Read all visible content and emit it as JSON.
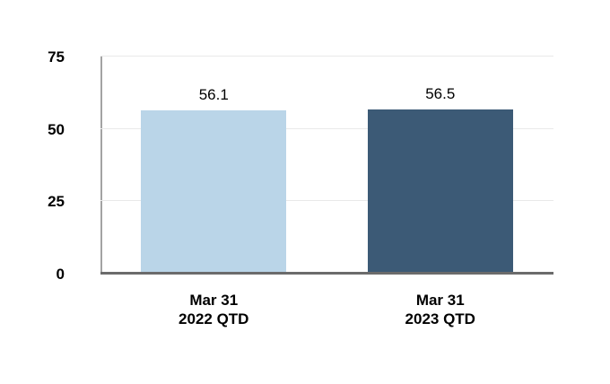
{
  "chart_data": {
    "type": "bar",
    "title": "",
    "xlabel": "",
    "ylabel": "",
    "categories": [
      "Mar 31 2022 QTD",
      "Mar 31 2023 QTD"
    ],
    "category_lines": [
      [
        "Mar 31",
        "2022 QTD"
      ],
      [
        "Mar 31",
        "2023 QTD"
      ]
    ],
    "values": [
      56.1,
      56.5
    ],
    "value_labels": [
      "56.1",
      "56.5"
    ],
    "ylim": [
      0,
      75
    ],
    "yticks": [
      0,
      25,
      50,
      75
    ],
    "ytick_labels": [
      "0",
      "25",
      "50",
      "75"
    ],
    "grid": "horizontal",
    "legend": "none",
    "bar_colors": [
      "#bad5e8",
      "#3c5a76"
    ]
  },
  "style": {
    "background_color": "#ffffff",
    "gridline_color": "#e9e9e9",
    "y_axis_line_color": "#a3a3a3",
    "x_axis_line_color": "#6b6b6b",
    "text_color": "#000000"
  }
}
